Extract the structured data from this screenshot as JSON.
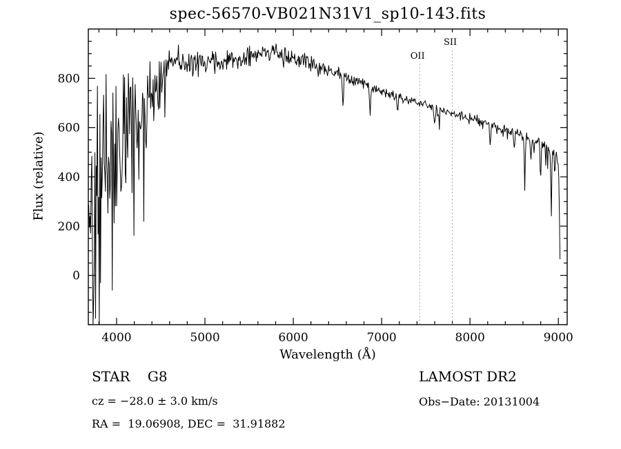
{
  "title": "spec-56570-VB021N31V1_sp10-143.fits",
  "annotations": {
    "class_label": "STAR    G8",
    "survey": "LAMOST DR2",
    "cz": "cz = −28.0 ± 3.0 km/s",
    "obs_date": "Obs−Date: 20131004",
    "radec": "RA =  19.06908, DEC =  31.91882"
  },
  "chart_data": {
    "type": "line",
    "title": "spec-56570-VB021N31V1_sp10-143.fits",
    "xlabel": "Wavelength (Å)",
    "ylabel": "Flux (relative)",
    "xlim": [
      3680,
      9100
    ],
    "ylim": [
      -200,
      1000
    ],
    "x_ticks": [
      4000,
      5000,
      6000,
      7000,
      8000,
      9000
    ],
    "y_ticks": [
      0,
      200,
      400,
      600,
      800
    ],
    "x_minor_step": 200,
    "y_minor_step": 50,
    "grid": false,
    "legend": null,
    "line_color": "#000000",
    "marker_line_color": "#8a8a8a",
    "marker_lines": [
      {
        "label": "OII",
        "wavelength": 7430,
        "label_flux": 880
      },
      {
        "label": "SII",
        "wavelength": 7800,
        "label_flux": 935
      }
    ],
    "sample_start": 3685,
    "sample_end": 9020,
    "sample_step": 7,
    "random_seed": 42,
    "noise_gain": 1.8,
    "continuum": [
      [
        3685,
        260
      ],
      [
        3700,
        300
      ],
      [
        3720,
        380
      ],
      [
        3740,
        340
      ],
      [
        3760,
        300
      ],
      [
        3780,
        430
      ],
      [
        3800,
        470
      ],
      [
        3830,
        420
      ],
      [
        3860,
        450
      ],
      [
        3900,
        500
      ],
      [
        3950,
        520
      ],
      [
        4000,
        545
      ],
      [
        4050,
        560
      ],
      [
        4100,
        570
      ],
      [
        4150,
        590
      ],
      [
        4200,
        610
      ],
      [
        4250,
        620
      ],
      [
        4300,
        630
      ],
      [
        4350,
        660
      ],
      [
        4400,
        700
      ],
      [
        4450,
        750
      ],
      [
        4500,
        800
      ],
      [
        4550,
        830
      ],
      [
        4600,
        855
      ],
      [
        4650,
        870
      ],
      [
        4700,
        875
      ],
      [
        4750,
        865
      ],
      [
        4800,
        860
      ],
      [
        4850,
        865
      ],
      [
        4900,
        870
      ],
      [
        4950,
        865
      ],
      [
        5000,
        860
      ],
      [
        5100,
        875
      ],
      [
        5200,
        870
      ],
      [
        5300,
        878
      ],
      [
        5400,
        880
      ],
      [
        5500,
        890
      ],
      [
        5600,
        900
      ],
      [
        5700,
        907
      ],
      [
        5800,
        903
      ],
      [
        5900,
        895
      ],
      [
        6000,
        885
      ],
      [
        6100,
        872
      ],
      [
        6200,
        858
      ],
      [
        6300,
        846
      ],
      [
        6400,
        836
      ],
      [
        6500,
        822
      ],
      [
        6600,
        806
      ],
      [
        6700,
        792
      ],
      [
        6800,
        778
      ],
      [
        6900,
        762
      ],
      [
        7000,
        748
      ],
      [
        7100,
        734
      ],
      [
        7200,
        722
      ],
      [
        7300,
        712
      ],
      [
        7400,
        702
      ],
      [
        7500,
        692
      ],
      [
        7600,
        680
      ],
      [
        7700,
        670
      ],
      [
        7800,
        660
      ],
      [
        7900,
        650
      ],
      [
        8000,
        641
      ],
      [
        8100,
        630
      ],
      [
        8200,
        617
      ],
      [
        8300,
        603
      ],
      [
        8400,
        592
      ],
      [
        8500,
        578
      ],
      [
        8600,
        562
      ],
      [
        8700,
        548
      ],
      [
        8800,
        532
      ],
      [
        8900,
        516
      ],
      [
        8960,
        502
      ],
      [
        8995,
        478
      ],
      [
        9008,
        360
      ],
      [
        9020,
        40
      ]
    ],
    "noise_sigma": [
      [
        3685,
        300
      ],
      [
        3750,
        320
      ],
      [
        3850,
        290
      ],
      [
        3950,
        240
      ],
      [
        4050,
        200
      ],
      [
        4150,
        170
      ],
      [
        4250,
        150
      ],
      [
        4350,
        120
      ],
      [
        4450,
        80
      ],
      [
        4550,
        55
      ],
      [
        4700,
        42
      ],
      [
        4900,
        36
      ],
      [
        5200,
        30
      ],
      [
        5600,
        27
      ],
      [
        6000,
        22
      ],
      [
        6500,
        17
      ],
      [
        7000,
        13
      ],
      [
        7500,
        11
      ],
      [
        8000,
        11
      ],
      [
        8400,
        13
      ],
      [
        8700,
        16
      ],
      [
        9020,
        22
      ]
    ],
    "absorption_dips": [
      [
        3933,
        150,
        8
      ],
      [
        4101,
        90,
        7
      ],
      [
        4340,
        100,
        8
      ],
      [
        4861,
        110,
        8
      ],
      [
        5170,
        60,
        10
      ],
      [
        5890,
        70,
        7
      ],
      [
        6280,
        40,
        8
      ],
      [
        6563,
        130,
        8
      ],
      [
        6870,
        110,
        9
      ],
      [
        7180,
        70,
        10
      ],
      [
        7600,
        60,
        12
      ],
      [
        7650,
        40,
        8
      ],
      [
        8230,
        80,
        9
      ],
      [
        8500,
        60,
        6
      ],
      [
        8620,
        210,
        7
      ],
      [
        8690,
        90,
        6
      ],
      [
        8800,
        160,
        7
      ],
      [
        8920,
        260,
        7
      ],
      [
        8960,
        120,
        6
      ]
    ],
    "spike_prob": [
      [
        3685,
        0.12
      ],
      [
        4400,
        0.06
      ],
      [
        4800,
        0.03
      ],
      [
        5500,
        0.02
      ],
      [
        7000,
        0.02
      ],
      [
        8200,
        0.04
      ],
      [
        8600,
        0.08
      ],
      [
        9020,
        0.1
      ]
    ]
  }
}
